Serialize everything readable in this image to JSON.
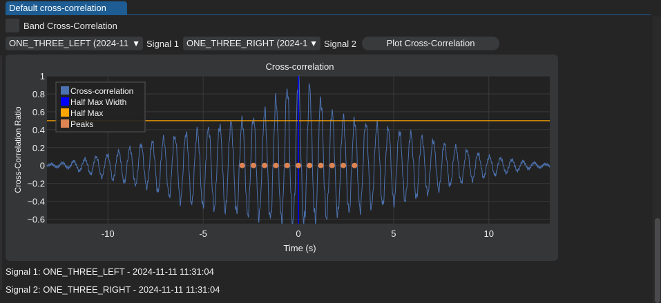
{
  "tab": {
    "label": "Default cross-correlation"
  },
  "band_checkbox": {
    "label": "Band Cross-Correlation",
    "checked": false
  },
  "controls": {
    "signal1_value": "ONE_THREE_LEFT (2024-11",
    "signal1_label": "Signal 1",
    "signal2_value": "ONE_THREE_RIGHT (2024-1",
    "signal2_label": "Signal 2",
    "plot_button": "Plot Cross-Correlation",
    "dropdown_arrow": "▼"
  },
  "info": {
    "signal1": "Signal 1: ONE_THREE_LEFT - 2024-11-11 11:31:04",
    "signal2": "Signal 2: ONE_THREE_RIGHT - 2024-11-11 11:31:04"
  },
  "colors": {
    "accent": "#1d5d93",
    "cross_correlation": "#4c72b0",
    "half_max_width": "#0000ff",
    "half_max": "#ffa500",
    "peaks": "#dd8452",
    "plot_bg": "#222222"
  },
  "chart_data": {
    "type": "line",
    "title": "Cross-correlation",
    "xlabel": "Time (s)",
    "ylabel": "Cross-Correlation Ratio",
    "xlim": [
      -13.2,
      13.2
    ],
    "ylim": [
      -0.65,
      1.0
    ],
    "xticks": [
      -10,
      -5,
      0,
      5,
      10
    ],
    "xtick_labels": [
      "-10",
      "-5",
      "0",
      "5",
      "10"
    ],
    "yticks": [
      1,
      0.8,
      0.6,
      0.4,
      0.2,
      0,
      -0.2,
      -0.4,
      -0.6
    ],
    "ytick_labels": [
      "1",
      "0.8",
      "0.6",
      "0.4",
      "0.2",
      "0",
      "−0.2",
      "−0.4",
      "−0.6"
    ],
    "grid": true,
    "legend_position": "top-left",
    "legend": [
      "Cross-correlation",
      "Half Max Width",
      "Half Max",
      "Peaks"
    ],
    "oscillation_period_s": 0.59,
    "envelope": {
      "t": [
        -13.2,
        -12,
        -10,
        -8,
        -6,
        -4,
        -2,
        0,
        2,
        4,
        6,
        8,
        10,
        12,
        13.2
      ],
      "pos": [
        0.01,
        0.04,
        0.12,
        0.25,
        0.35,
        0.45,
        0.55,
        1.0,
        0.55,
        0.45,
        0.35,
        0.22,
        0.1,
        0.04,
        0.01
      ],
      "neg": [
        -0.01,
        -0.03,
        -0.15,
        -0.24,
        -0.42,
        -0.5,
        -0.58,
        -0.65,
        -0.55,
        -0.46,
        -0.38,
        -0.22,
        -0.12,
        -0.04,
        -0.01
      ]
    },
    "half_max_level": 0.5,
    "half_max_width_x": [
      0.0,
      0.0
    ],
    "peaks": {
      "x": [
        -2.95,
        -2.36,
        -1.77,
        -1.18,
        -0.59,
        0.0,
        0.59,
        1.18,
        1.77,
        2.36,
        2.95
      ],
      "y": [
        0,
        0,
        0,
        0,
        0,
        0,
        0,
        0,
        0,
        0,
        0
      ]
    }
  }
}
